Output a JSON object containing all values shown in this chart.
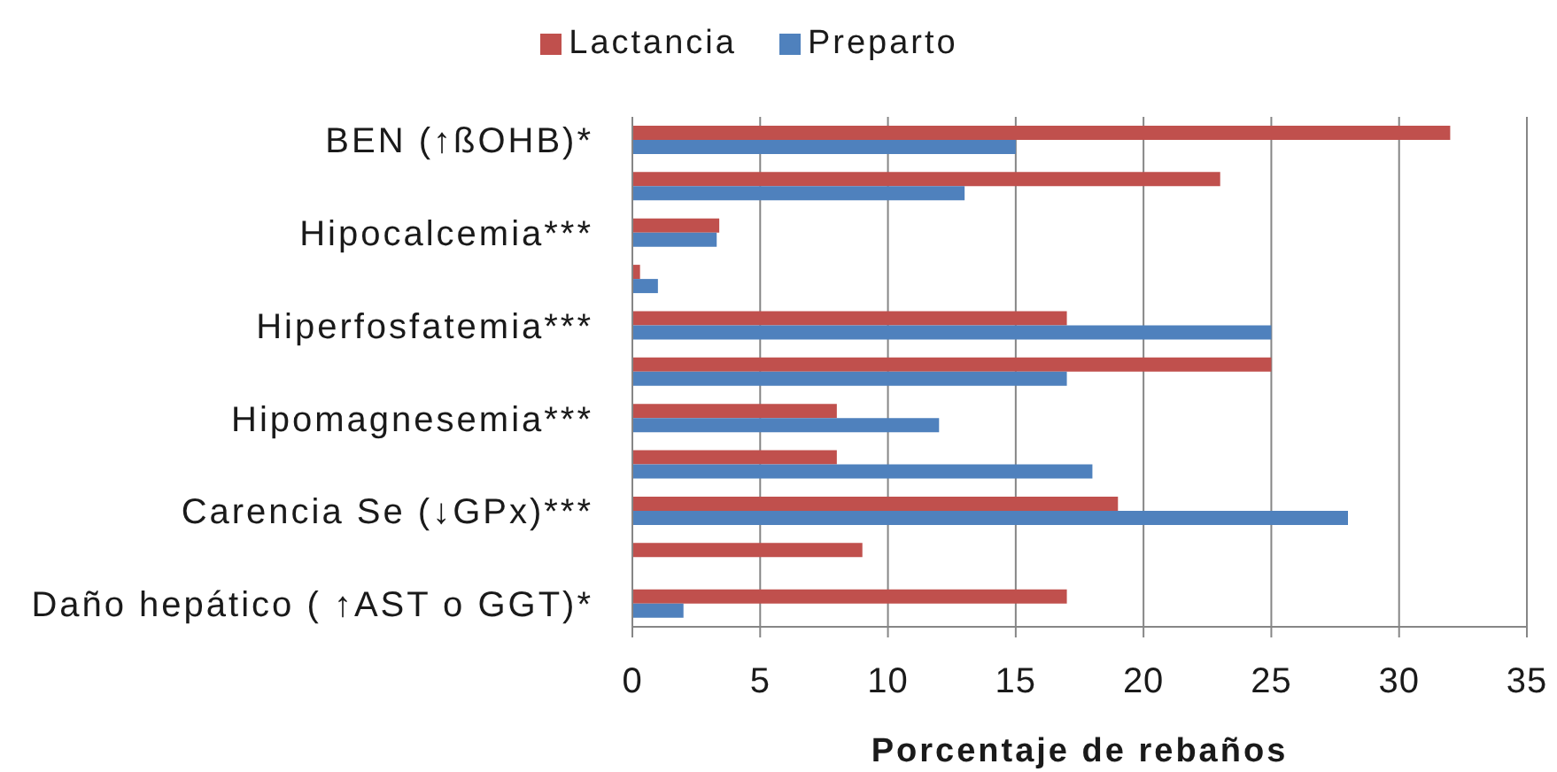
{
  "chart_data": {
    "type": "bar",
    "orientation": "horizontal",
    "xlabel": "Porcentaje de rebaños",
    "categories": [
      "BEN (↑ßOHB)*",
      null,
      "Hipocalcemia***",
      null,
      "Hiperfosfatemia***",
      null,
      "Hipomagnesemia***",
      null,
      "Carencia Se (↓GPx)***",
      null,
      "Daño hepático ( ↑AST o GGT)*"
    ],
    "series": [
      {
        "name": "Lactancia",
        "color": "#c0504d",
        "values": [
          32,
          23,
          3.4,
          0.3,
          17,
          25,
          8,
          8,
          19,
          9,
          17
        ]
      },
      {
        "name": "Preparto",
        "color": "#4f81bd",
        "values": [
          15,
          13,
          3.3,
          1,
          25,
          17,
          12,
          18,
          28,
          null,
          2
        ]
      }
    ],
    "xlim": [
      0,
      35
    ],
    "xticks": [
      0,
      5,
      10,
      15,
      20,
      25,
      30,
      35
    ],
    "grid": "x",
    "legend": "top"
  }
}
